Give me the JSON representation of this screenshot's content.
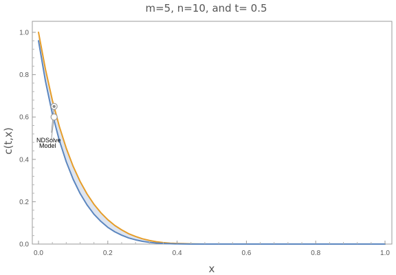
{
  "chart_data": {
    "type": "line",
    "title": "m=5, n=10, and t= 0.5",
    "xlabel": "x",
    "ylabel": "c(t,x)",
    "xlim": [
      0,
      1
    ],
    "ylim": [
      0,
      1
    ],
    "xticks": [
      "0.0",
      "0.2",
      "0.4",
      "0.6",
      "0.8",
      "1.0"
    ],
    "yticks": [
      "0.0",
      "0.2",
      "0.4",
      "0.6",
      "0.8",
      "1.0"
    ],
    "grid": false,
    "fill_between_series": true,
    "series": [
      {
        "name": "NDSolve",
        "color": "#e69d29",
        "x": [
          0,
          0.02,
          0.04,
          0.06,
          0.08,
          0.1,
          0.12,
          0.14,
          0.16,
          0.18,
          0.2,
          0.22,
          0.24,
          0.26,
          0.28,
          0.3,
          0.32,
          0.34,
          0.36,
          0.38,
          0.4,
          0.42,
          0.44,
          0.46,
          0.48,
          0.5,
          0.6,
          0.7,
          0.8,
          0.9,
          1.0
        ],
        "values": [
          1.0,
          0.826,
          0.679,
          0.556,
          0.453,
          0.367,
          0.296,
          0.237,
          0.188,
          0.148,
          0.115,
          0.088,
          0.067,
          0.049,
          0.036,
          0.025,
          0.017,
          0.011,
          0.007,
          0.004,
          0.003,
          0.002,
          0.001,
          0.0005,
          0.0002,
          0.0,
          0.0,
          0.0,
          0.0,
          0.0,
          0.0
        ]
      },
      {
        "name": "Model",
        "color": "#5b86bf",
        "x": [
          0,
          0.02,
          0.04,
          0.06,
          0.08,
          0.1,
          0.12,
          0.14,
          0.16,
          0.18,
          0.2,
          0.22,
          0.24,
          0.26,
          0.28,
          0.3,
          0.32,
          0.34,
          0.36,
          0.38,
          0.4,
          0.42,
          0.44,
          0.46,
          0.48,
          0.5,
          0.6,
          0.7,
          0.8,
          0.9,
          1.0
        ],
        "values": [
          0.96,
          0.77,
          0.615,
          0.49,
          0.389,
          0.306,
          0.239,
          0.185,
          0.141,
          0.107,
          0.079,
          0.058,
          0.042,
          0.029,
          0.02,
          0.013,
          0.008,
          0.005,
          0.003,
          0.0015,
          0.0007,
          0.0003,
          0.0001,
          0.0,
          0.0,
          0.0,
          0.0,
          0.0,
          0.0,
          0.0,
          0.0
        ]
      }
    ],
    "fill_color": "#dde4ef",
    "annotations": [
      {
        "series": "NDSolve",
        "x": 0.045,
        "y": 0.65
      },
      {
        "series": "Model",
        "x": 0.045,
        "y": 0.6
      }
    ]
  }
}
